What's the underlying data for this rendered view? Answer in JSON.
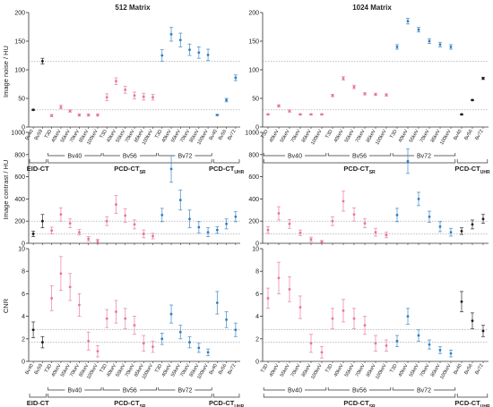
{
  "figure": {
    "ylabels": [
      "Image noise / HU",
      "Image contrast / HU",
      "CNR"
    ],
    "panel_titles": [
      "512 Matrix",
      "1024 Matrix"
    ]
  },
  "colors": {
    "black": "#1a1a1a",
    "pink": "#e8749a",
    "blue": "#2f7fc2",
    "axis": "#333333",
    "ref_line": "#9a9a9a"
  },
  "chart_data": [
    {
      "type": "scatter",
      "title": "512 Matrix",
      "ylabel": "Image noise / HU",
      "ylim": [
        0,
        200
      ],
      "yticks": [
        0,
        50,
        100,
        150,
        200
      ],
      "categories": [
        "Bv40",
        "Bv59",
        "T3D",
        "40keV",
        "55keV",
        "70keV",
        "85keV",
        "100keV",
        "T3D",
        "40keV",
        "55keV",
        "70keV",
        "85keV",
        "100keV",
        "T3D",
        "40keV",
        "55keV",
        "70keV",
        "85keV",
        "100keV",
        "Bv40",
        "Bv56",
        "Bv72"
      ],
      "colors": [
        "black",
        "black",
        "pink",
        "pink",
        "pink",
        "pink",
        "pink",
        "pink",
        "pink",
        "pink",
        "pink",
        "pink",
        "pink",
        "pink",
        "blue",
        "blue",
        "blue",
        "blue",
        "blue",
        "blue",
        "blue",
        "blue",
        "blue"
      ],
      "values": [
        30,
        115,
        20,
        35,
        28,
        21,
        21,
        21,
        52,
        80,
        65,
        55,
        53,
        52,
        125,
        162,
        152,
        135,
        130,
        126,
        21,
        47,
        86
      ],
      "errors": [
        1,
        5,
        2,
        3,
        2,
        2,
        2,
        2,
        6,
        6,
        6,
        6,
        6,
        5,
        10,
        12,
        12,
        10,
        10,
        10,
        1,
        3,
        5
      ],
      "ref_lines": [
        115,
        30
      ],
      "groups": [
        {
          "label": "EID-CT",
          "from": 0,
          "to": 1
        },
        {
          "label": "PCD-CT",
          "sub": "SR",
          "from": 2,
          "to": 19
        },
        {
          "label": "PCD-CT",
          "sub": "UHR",
          "from": 20,
          "to": 22
        }
      ],
      "subgroups": [
        {
          "label": "Bv40",
          "from": 2,
          "to": 7
        },
        {
          "label": "Bv56",
          "from": 8,
          "to": 13
        },
        {
          "label": "Bv72",
          "from": 14,
          "to": 19
        }
      ]
    },
    {
      "type": "scatter",
      "title": "1024 Matrix",
      "ylabel": "",
      "ylim": [
        0,
        200
      ],
      "yticks": [
        0,
        50,
        100,
        150,
        200
      ],
      "categories": [
        "T3D",
        "40keV",
        "55keV",
        "70keV",
        "85keV",
        "100keV",
        "T3D",
        "40keV",
        "55keV",
        "70keV",
        "85keV",
        "100keV",
        "T3D",
        "40keV",
        "55keV",
        "70keV",
        "85keV",
        "100keV",
        "Bv40",
        "Bv56",
        "Bv72"
      ],
      "colors": [
        "pink",
        "pink",
        "pink",
        "pink",
        "pink",
        "pink",
        "pink",
        "pink",
        "pink",
        "pink",
        "pink",
        "pink",
        "blue",
        "blue",
        "blue",
        "blue",
        "blue",
        "blue",
        "black",
        "black",
        "black"
      ],
      "values": [
        22,
        37,
        28,
        22,
        22,
        22,
        55,
        85,
        70,
        58,
        57,
        56,
        140,
        185,
        170,
        150,
        144,
        140,
        22,
        47,
        85
      ],
      "errors": [
        1,
        2,
        2,
        1,
        1,
        1,
        2,
        3,
        3,
        2,
        2,
        2,
        4,
        5,
        4,
        4,
        4,
        4,
        1,
        1,
        2
      ],
      "ref_lines": [
        115,
        30
      ],
      "groups": [
        {
          "label": "PCD-CT",
          "sub": "SR",
          "from": 0,
          "to": 17
        },
        {
          "label": "PCD-CT",
          "sub": "UHR",
          "from": 18,
          "to": 20
        }
      ],
      "subgroups": [
        {
          "label": "Bv40",
          "from": 0,
          "to": 5
        },
        {
          "label": "Bv56",
          "from": 6,
          "to": 11
        },
        {
          "label": "Bv72",
          "from": 12,
          "to": 17
        }
      ]
    },
    {
      "type": "scatter",
      "title": "",
      "ylabel": "Image contrast / HU",
      "ylim": [
        0,
        1000
      ],
      "yticks": [
        0,
        200,
        400,
        600,
        800,
        1000
      ],
      "categories": [
        "Bv40",
        "Bv59",
        "T3D",
        "40keV",
        "55keV",
        "70keV",
        "85keV",
        "100keV",
        "T3D",
        "40keV",
        "55keV",
        "70keV",
        "85keV",
        "100keV",
        "T3D",
        "40keV",
        "55keV",
        "70keV",
        "85keV",
        "100keV",
        "Bv40",
        "Bv56",
        "Bv72"
      ],
      "colors": [
        "black",
        "black",
        "pink",
        "pink",
        "pink",
        "pink",
        "pink",
        "pink",
        "pink",
        "pink",
        "pink",
        "pink",
        "pink",
        "pink",
        "blue",
        "blue",
        "blue",
        "blue",
        "blue",
        "blue",
        "blue",
        "blue",
        "blue"
      ],
      "values": [
        85,
        200,
        115,
        260,
        180,
        100,
        40,
        20,
        200,
        350,
        250,
        170,
        85,
        65,
        255,
        670,
        390,
        220,
        145,
        100,
        120,
        175,
        240
      ],
      "errors": [
        25,
        60,
        30,
        60,
        40,
        25,
        20,
        15,
        40,
        80,
        60,
        40,
        35,
        25,
        60,
        120,
        90,
        80,
        50,
        40,
        30,
        45,
        45
      ],
      "ref_lines": [
        200,
        85
      ],
      "groups": [],
      "subgroups": []
    },
    {
      "type": "scatter",
      "title": "",
      "ylabel": "",
      "ylim": [
        0,
        1000
      ],
      "yticks": [
        0,
        200,
        400,
        600,
        800,
        1000
      ],
      "categories": [
        "T3D",
        "40keV",
        "55keV",
        "70keV",
        "85keV",
        "100keV",
        "T3D",
        "40keV",
        "55keV",
        "70keV",
        "85keV",
        "100keV",
        "T3D",
        "40keV",
        "55keV",
        "70keV",
        "85keV",
        "100keV",
        "Bv40",
        "Bv56",
        "Bv72"
      ],
      "colors": [
        "pink",
        "pink",
        "pink",
        "pink",
        "pink",
        "pink",
        "pink",
        "pink",
        "pink",
        "pink",
        "pink",
        "pink",
        "blue",
        "blue",
        "blue",
        "blue",
        "blue",
        "blue",
        "black",
        "black",
        "black"
      ],
      "values": [
        120,
        270,
        175,
        95,
        35,
        15,
        200,
        380,
        260,
        180,
        100,
        75,
        255,
        740,
        400,
        240,
        150,
        100,
        110,
        170,
        220
      ],
      "errors": [
        30,
        60,
        40,
        25,
        20,
        10,
        40,
        90,
        60,
        40,
        35,
        25,
        60,
        110,
        60,
        50,
        45,
        35,
        30,
        40,
        40
      ],
      "ref_lines": [
        200,
        85
      ],
      "groups": [],
      "subgroups": []
    },
    {
      "type": "scatter",
      "title": "",
      "ylabel": "CNR",
      "ylim": [
        0,
        10
      ],
      "yticks": [
        0,
        2,
        4,
        6,
        8,
        10
      ],
      "categories": [
        "Bv40",
        "Bv59",
        "T3D",
        "40keV",
        "55keV",
        "70keV",
        "85keV",
        "100keV",
        "T3D",
        "40keV",
        "55keV",
        "70keV",
        "85keV",
        "100keV",
        "T3D",
        "40keV",
        "55keV",
        "70keV",
        "85keV",
        "100keV",
        "Bv40",
        "Bv56",
        "Bv72"
      ],
      "colors": [
        "black",
        "black",
        "pink",
        "pink",
        "pink",
        "pink",
        "pink",
        "pink",
        "pink",
        "pink",
        "pink",
        "pink",
        "pink",
        "pink",
        "blue",
        "blue",
        "blue",
        "blue",
        "blue",
        "blue",
        "blue",
        "blue",
        "blue"
      ],
      "values": [
        2.8,
        1.7,
        5.6,
        7.8,
        6.6,
        5.0,
        1.8,
        0.9,
        3.8,
        4.4,
        3.8,
        3.2,
        1.6,
        1.3,
        2.0,
        4.2,
        2.6,
        1.7,
        1.2,
        0.8,
        5.2,
        3.7,
        2.8
      ],
      "errors": [
        0.7,
        0.5,
        1.1,
        1.5,
        1.2,
        1.0,
        0.8,
        0.5,
        0.8,
        1.0,
        0.9,
        0.8,
        0.7,
        0.5,
        0.5,
        0.8,
        0.6,
        0.5,
        0.4,
        0.3,
        1.0,
        0.7,
        0.6
      ],
      "ref_lines": [
        2.8,
        1.7
      ],
      "groups": [
        {
          "label": "EID-CT",
          "from": 0,
          "to": 1
        },
        {
          "label": "PCD-CT",
          "sub": "SR",
          "from": 2,
          "to": 19
        },
        {
          "label": "PCD-CT",
          "sub": "UHR",
          "from": 20,
          "to": 22
        }
      ],
      "subgroups": [
        {
          "label": "Bv40",
          "from": 2,
          "to": 7
        },
        {
          "label": "Bv56",
          "from": 8,
          "to": 13
        },
        {
          "label": "Bv72",
          "from": 14,
          "to": 19
        }
      ]
    },
    {
      "type": "scatter",
      "title": "",
      "ylabel": "",
      "ylim": [
        0,
        10
      ],
      "yticks": [
        0,
        2,
        4,
        6,
        8,
        10
      ],
      "categories": [
        "T3D",
        "40keV",
        "55keV",
        "70keV",
        "85keV",
        "100keV",
        "T3D",
        "40keV",
        "55keV",
        "70keV",
        "85keV",
        "100keV",
        "T3D",
        "40keV",
        "55keV",
        "70keV",
        "85keV",
        "100keV",
        "Bv40",
        "Bv56",
        "Bv72"
      ],
      "colors": [
        "pink",
        "pink",
        "pink",
        "pink",
        "pink",
        "pink",
        "pink",
        "pink",
        "pink",
        "pink",
        "pink",
        "pink",
        "blue",
        "blue",
        "blue",
        "blue",
        "blue",
        "blue",
        "black",
        "black",
        "black"
      ],
      "values": [
        5.6,
        7.4,
        6.4,
        4.8,
        1.6,
        0.8,
        3.8,
        4.5,
        3.8,
        3.2,
        1.6,
        1.4,
        1.8,
        4.0,
        2.3,
        1.5,
        1.0,
        0.7,
        5.3,
        3.6,
        2.7
      ],
      "errors": [
        0.9,
        1.4,
        1.1,
        1.0,
        0.8,
        0.5,
        0.9,
        1.0,
        0.9,
        0.8,
        0.7,
        0.5,
        0.5,
        0.7,
        0.5,
        0.4,
        0.3,
        0.3,
        0.9,
        0.7,
        0.5
      ],
      "ref_lines": [
        2.8,
        1.7
      ],
      "groups": [
        {
          "label": "PCD-CT",
          "sub": "SR",
          "from": 0,
          "to": 17
        },
        {
          "label": "PCD-CT",
          "sub": "UHR",
          "from": 18,
          "to": 20
        }
      ],
      "subgroups": [
        {
          "label": "Bv40",
          "from": 0,
          "to": 5
        },
        {
          "label": "Bv56",
          "from": 6,
          "to": 11
        },
        {
          "label": "Bv72",
          "from": 12,
          "to": 17
        }
      ]
    }
  ]
}
